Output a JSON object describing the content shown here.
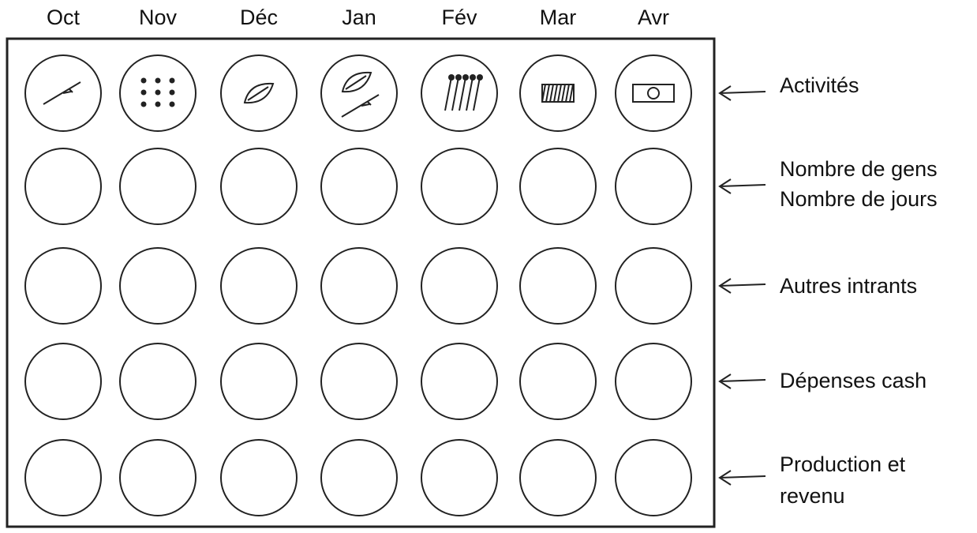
{
  "columns": [
    "Oct",
    "Nov",
    "Déc",
    "Jan",
    "Fév",
    "Mar",
    "Avr"
  ],
  "rows": [
    {
      "label": [
        "Activités"
      ]
    },
    {
      "label": [
        "Nombre de gens",
        "Nombre de jours"
      ]
    },
    {
      "label": [
        "Autres intrants"
      ]
    },
    {
      "label": [
        "Dépenses cash"
      ]
    },
    {
      "label": [
        "Production et",
        "revenu"
      ]
    }
  ]
}
